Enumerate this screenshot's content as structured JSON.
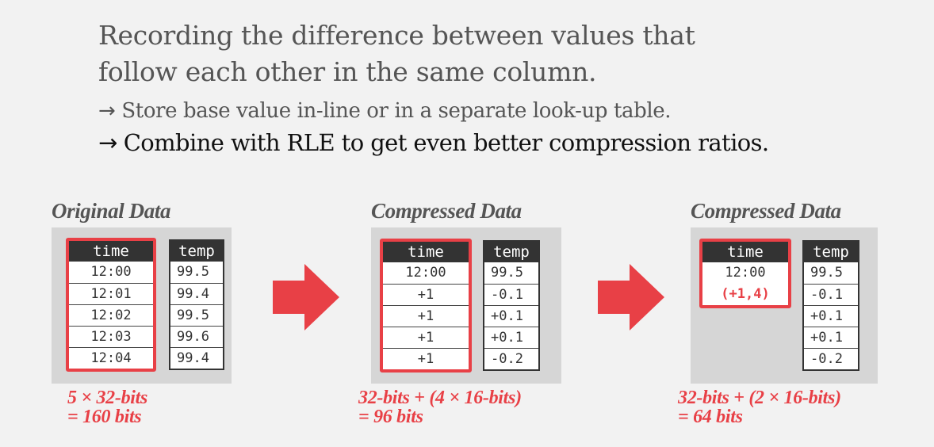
{
  "title_lines": [
    "Recording the difference between values that",
    "follow each other in the same column."
  ],
  "bullets": [
    {
      "arrow": "→",
      "text": "Store base value in-line or in a separate look-up table."
    },
    {
      "arrow": "→",
      "text": "Combine with RLE to get even better compression ratios."
    }
  ],
  "colors": {
    "accent": "#e84046",
    "header_bg": "#333333",
    "panel_bg": "#d6d6d6"
  },
  "icons": [
    "right-arrow-icon",
    "right-arrow-icon"
  ],
  "panels": [
    {
      "title": "Original Data",
      "time_header": "time",
      "temp_header": "temp",
      "time": [
        "12:00",
        "12:01",
        "12:02",
        "12:03",
        "12:04"
      ],
      "temp": [
        "99.5",
        "99.4",
        "99.5",
        "99.6",
        "99.4"
      ],
      "formula": [
        "5 × 32-bits",
        "= 160 bits"
      ]
    },
    {
      "title": "Compressed Data",
      "time_header": "time",
      "temp_header": "temp",
      "time": [
        "12:00",
        "+1",
        "+1",
        "+1",
        "+1"
      ],
      "temp": [
        "99.5",
        "-0.1",
        "+0.1",
        "+0.1",
        "-0.2"
      ],
      "formula": [
        "32-bits + (4 × 16-bits)",
        "= 96 bits"
      ]
    },
    {
      "title": "Compressed Data",
      "time_header": "time",
      "temp_header": "temp",
      "time": [
        "12:00",
        "(+1,4)"
      ],
      "temp": [
        "99.5",
        "-0.1",
        "+0.1",
        "+0.1",
        "-0.2"
      ],
      "formula": [
        "32-bits + (2 × 16-bits)",
        "= 64 bits"
      ]
    }
  ]
}
